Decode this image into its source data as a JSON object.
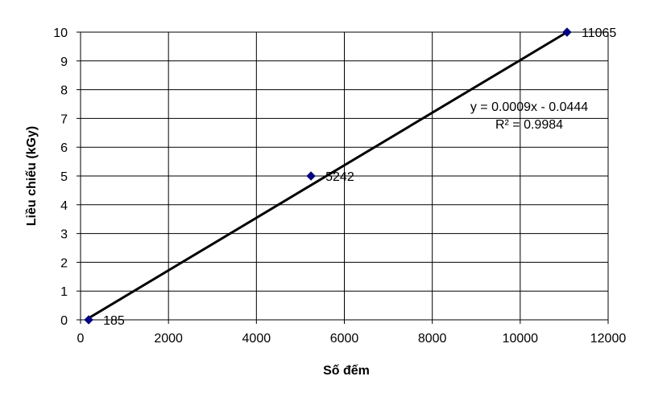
{
  "chart_data": {
    "type": "scatter",
    "title": "",
    "xlabel": "Số đếm",
    "ylabel": "Liều chiếu (kGy)",
    "xlim": [
      0,
      12000
    ],
    "ylim": [
      0,
      10
    ],
    "x_ticks": [
      0,
      2000,
      4000,
      6000,
      8000,
      10000,
      12000
    ],
    "y_ticks": [
      0,
      1,
      2,
      3,
      4,
      5,
      6,
      7,
      8,
      9,
      10
    ],
    "x_tick_labels": [
      "0",
      "2000",
      "4000",
      "6000",
      "8000",
      "10000",
      "12000"
    ],
    "y_tick_labels": [
      "0",
      "1",
      "2",
      "3",
      "4",
      "5",
      "6",
      "7",
      "8",
      "9",
      "10"
    ],
    "grid": true,
    "series": [
      {
        "x": [
          185,
          5242,
          11065
        ],
        "y": [
          0,
          5,
          10
        ],
        "point_labels": [
          "185",
          "5242",
          "11065"
        ],
        "marker": "diamond",
        "color": "#000080"
      }
    ],
    "trendline": {
      "type": "linear",
      "x_range": [
        185,
        11065
      ],
      "y_range": [
        0.06,
        10
      ],
      "color": "#000000",
      "equation": "y = 0.0009x - 0.0444",
      "r_squared": "R² = 0.9984"
    },
    "frame_color": "#000000",
    "grid_color": "#000000"
  }
}
